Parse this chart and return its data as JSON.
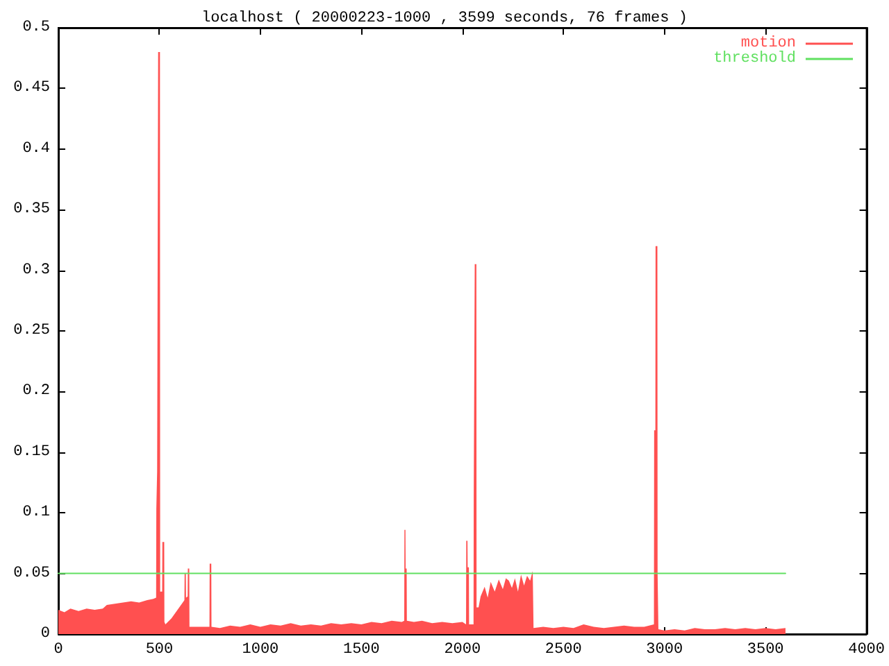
{
  "chart_data": {
    "type": "area",
    "title": "localhost ( 20000223-1000 , 3599 seconds, 76 frames )",
    "xlim": [
      0,
      4000
    ],
    "xticks": [
      0,
      500,
      1000,
      1500,
      2000,
      2500,
      3000,
      3500,
      4000
    ],
    "ylim": [
      0,
      0.5
    ],
    "yticks": [
      0,
      0.05,
      0.1,
      0.15,
      0.2,
      0.25,
      0.3,
      0.35,
      0.4,
      0.45,
      0.5
    ],
    "legend": "top right",
    "marker": "none",
    "series": [
      {
        "name": "motion",
        "color": "#ff5050",
        "x": [
          0,
          30,
          60,
          100,
          140,
          180,
          220,
          240,
          280,
          320,
          360,
          400,
          440,
          470,
          484,
          485,
          488,
          489,
          493,
          494,
          503,
          504,
          514,
          515,
          524,
          525,
          530,
          560,
          590,
          620,
          624,
          625,
          631,
          632,
          640,
          641,
          648,
          649,
          700,
          748,
          749,
          757,
          758,
          800,
          850,
          900,
          950,
          1000,
          1050,
          1100,
          1150,
          1200,
          1250,
          1300,
          1350,
          1400,
          1450,
          1500,
          1550,
          1600,
          1650,
          1700,
          1712,
          1713,
          1718,
          1719,
          1724,
          1725,
          1760,
          1800,
          1850,
          1900,
          1950,
          2000,
          2018,
          2019,
          2025,
          2026,
          2032,
          2033,
          2055,
          2056,
          2060,
          2061,
          2069,
          2070,
          2080,
          2090,
          2110,
          2125,
          2140,
          2160,
          2180,
          2200,
          2215,
          2230,
          2245,
          2260,
          2275,
          2290,
          2305,
          2320,
          2335,
          2348,
          2352,
          2400,
          2450,
          2500,
          2550,
          2600,
          2650,
          2700,
          2750,
          2800,
          2850,
          2900,
          2948,
          2949,
          2955,
          2956,
          2965,
          2966,
          2969,
          2970,
          3000,
          3050,
          3100,
          3150,
          3200,
          3250,
          3300,
          3350,
          3400,
          3450,
          3500,
          3550,
          3599
        ],
        "values": [
          0.02,
          0.018,
          0.021,
          0.019,
          0.021,
          0.02,
          0.021,
          0.024,
          0.025,
          0.026,
          0.027,
          0.026,
          0.028,
          0.029,
          0.03,
          0.103,
          0.103,
          0.134,
          0.134,
          0.48,
          0.48,
          0.035,
          0.035,
          0.076,
          0.076,
          0.01,
          0.008,
          0.013,
          0.02,
          0.027,
          0.028,
          0.05,
          0.05,
          0.03,
          0.031,
          0.054,
          0.054,
          0.006,
          0.006,
          0.006,
          0.058,
          0.058,
          0.006,
          0.005,
          0.007,
          0.006,
          0.008,
          0.006,
          0.008,
          0.007,
          0.009,
          0.007,
          0.008,
          0.007,
          0.009,
          0.008,
          0.009,
          0.008,
          0.01,
          0.009,
          0.011,
          0.01,
          0.011,
          0.086,
          0.086,
          0.054,
          0.054,
          0.011,
          0.01,
          0.011,
          0.009,
          0.01,
          0.009,
          0.01,
          0.008,
          0.077,
          0.077,
          0.055,
          0.055,
          0.008,
          0.008,
          0.113,
          0.113,
          0.305,
          0.305,
          0.022,
          0.022,
          0.031,
          0.039,
          0.03,
          0.043,
          0.035,
          0.045,
          0.037,
          0.046,
          0.044,
          0.038,
          0.046,
          0.035,
          0.049,
          0.04,
          0.048,
          0.044,
          0.052,
          0.005,
          0.006,
          0.005,
          0.006,
          0.005,
          0.008,
          0.006,
          0.005,
          0.006,
          0.007,
          0.006,
          0.006,
          0.008,
          0.168,
          0.168,
          0.32,
          0.32,
          0.05,
          0.05,
          0.004,
          0.003,
          0.004,
          0.003,
          0.005,
          0.004,
          0.004,
          0.005,
          0.004,
          0.005,
          0.004,
          0.005,
          0.004,
          0.005
        ]
      },
      {
        "name": "threshold",
        "type": "line",
        "color": "#60e060",
        "x": [
          0,
          3599
        ],
        "values": [
          0.05,
          0.05
        ]
      }
    ]
  }
}
